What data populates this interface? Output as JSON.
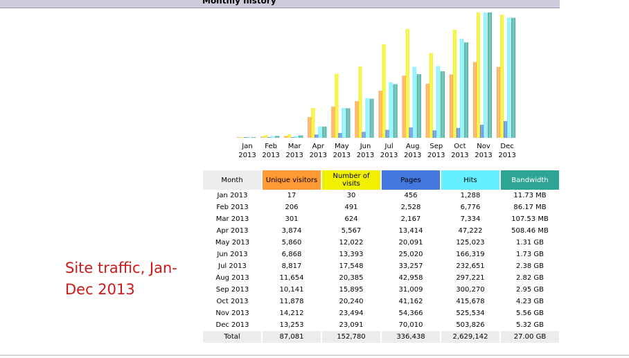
{
  "header": {
    "title": "Monthly history"
  },
  "caption": "Site traffic, Jan-Dec 2013",
  "colors": {
    "unique": "#FF9933",
    "visits": "#F0F000",
    "pages": "#4477DD",
    "hits": "#66F0FF",
    "bandwidth": "#2EA495",
    "month_header_bg": "#ECECEC",
    "caption": "#D01818"
  },
  "table": {
    "columns": [
      "Month",
      "Unique visitors",
      "Number of visits",
      "Pages",
      "Hits",
      "Bandwidth"
    ],
    "rows": [
      [
        "Jan 2013",
        "17",
        "30",
        "456",
        "1,288",
        "11.73 MB"
      ],
      [
        "Feb 2013",
        "206",
        "491",
        "2,528",
        "6,776",
        "86.17 MB"
      ],
      [
        "Mar 2013",
        "301",
        "624",
        "2,167",
        "7,334",
        "107.53 MB"
      ],
      [
        "Apr 2013",
        "3,874",
        "5,567",
        "13,414",
        "47,222",
        "508.46 MB"
      ],
      [
        "May 2013",
        "5,860",
        "12,022",
        "20,091",
        "125,023",
        "1.31 GB"
      ],
      [
        "Jun 2013",
        "6,868",
        "13,393",
        "25,020",
        "166,319",
        "1.73 GB"
      ],
      [
        "Jul 2013",
        "8,817",
        "17,548",
        "33,257",
        "232,651",
        "2.38 GB"
      ],
      [
        "Aug 2013",
        "11,654",
        "20,385",
        "42,958",
        "297,221",
        "2.82 GB"
      ],
      [
        "Sep 2013",
        "10,141",
        "15,895",
        "31,009",
        "300,270",
        "2.95 GB"
      ],
      [
        "Oct 2013",
        "11,878",
        "20,240",
        "41,162",
        "415,678",
        "4.23 GB"
      ],
      [
        "Nov 2013",
        "14,212",
        "23,494",
        "54,366",
        "525,534",
        "5.56 GB"
      ],
      [
        "Dec 2013",
        "13,253",
        "23,091",
        "70,010",
        "503,826",
        "5.32 GB"
      ]
    ],
    "total": [
      "Total",
      "87,081",
      "152,780",
      "336,438",
      "2,629,142",
      "27.00 GB"
    ]
  },
  "chart_data": {
    "type": "bar",
    "categories": [
      [
        "Jan",
        "2013"
      ],
      [
        "Feb",
        "2013"
      ],
      [
        "Mar",
        "2013"
      ],
      [
        "Apr",
        "2013"
      ],
      [
        "May",
        "2013"
      ],
      [
        "Jun",
        "2013"
      ],
      [
        "Jul",
        "2013"
      ],
      [
        "Aug",
        "2013"
      ],
      [
        "Sep",
        "2013"
      ],
      [
        "Oct",
        "2013"
      ],
      [
        "Nov",
        "2013"
      ],
      [
        "Dec",
        "2013"
      ]
    ],
    "series": [
      {
        "key": "unique",
        "values": [
          17,
          206,
          301,
          3874,
          5860,
          6868,
          8817,
          11654,
          10141,
          11878,
          14212,
          13253
        ]
      },
      {
        "key": "visits",
        "values": [
          30,
          491,
          624,
          5567,
          12022,
          13393,
          17548,
          20385,
          15895,
          20240,
          23494,
          23091
        ]
      },
      {
        "key": "pages",
        "values": [
          456,
          2528,
          2167,
          13414,
          20091,
          25020,
          33257,
          42958,
          31009,
          41162,
          54366,
          70010
        ]
      },
      {
        "key": "hits",
        "values": [
          1288,
          6776,
          7334,
          47222,
          125023,
          166319,
          232651,
          297221,
          300270,
          415678,
          525534,
          503826
        ]
      },
      {
        "key": "bandwidth",
        "values": [
          11.73,
          86.17,
          107.53,
          508.46,
          1341,
          1771,
          2437,
          2888,
          3021,
          4332,
          5693,
          5448
        ]
      }
    ],
    "scale_groups": [
      [
        "unique",
        "visits"
      ],
      [
        "pages",
        "hits"
      ],
      [
        "bandwidth"
      ]
    ],
    "grid": false,
    "legend": "none"
  }
}
